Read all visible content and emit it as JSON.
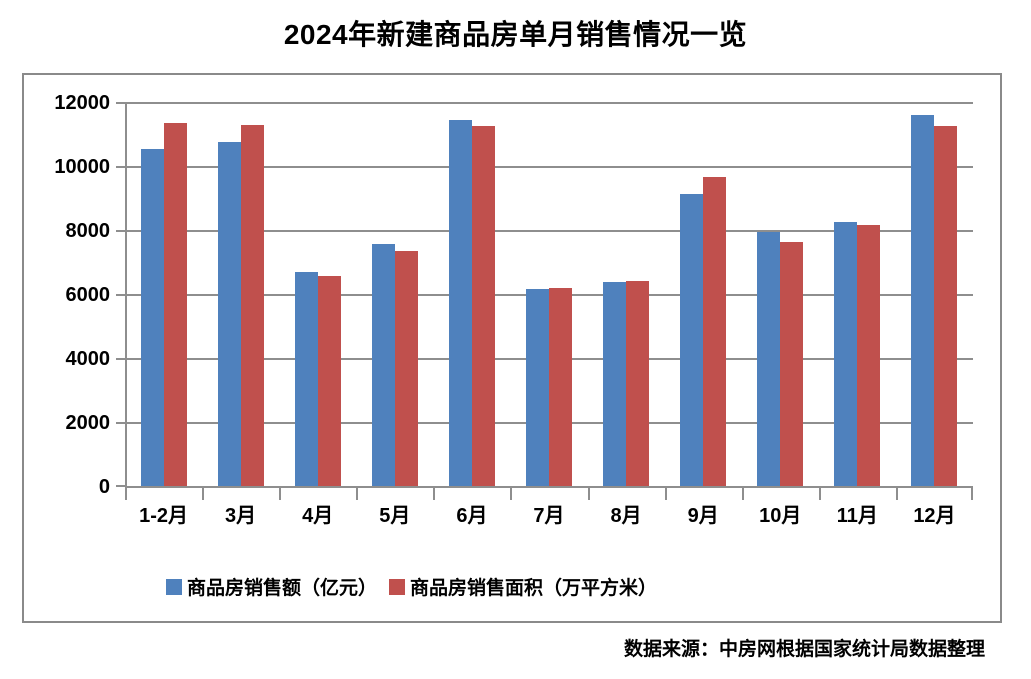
{
  "page": {
    "source_note": "数据来源：中房网根据国家统计局数据整理"
  },
  "colors": {
    "series1": "#4F81BD",
    "series2": "#C0504D",
    "gridline": "#8E8E8E",
    "axis": "#8E8E8E",
    "frame_border": "#8A8A8A",
    "text": "#000000",
    "background": "#FFFFFF"
  },
  "chart_data": {
    "type": "bar",
    "title": "2024年新建商品房单月销售情况一览",
    "categories": [
      "1-2月",
      "3月",
      "4月",
      "5月",
      "6月",
      "7月",
      "8月",
      "9月",
      "10月",
      "11月",
      "12月"
    ],
    "series": [
      {
        "name": "商品房销售额（亿元）",
        "color": "#4F81BD",
        "values": [
          10566,
          10789,
          6712,
          7598,
          11468,
          6197,
          6393,
          9157,
          7975,
          8270,
          11625
        ]
      },
      {
        "name": "商品房销售面积（万平方米）",
        "color": "#C0504D",
        "values": [
          11369,
          11299,
          6584,
          7390,
          11274,
          6233,
          6453,
          9682,
          7646,
          8188,
          11267
        ]
      }
    ],
    "xlabel": "",
    "ylabel": "",
    "ylim": [
      0,
      12000
    ],
    "yticks": [
      0,
      2000,
      4000,
      6000,
      8000,
      10000,
      12000
    ],
    "grid": true,
    "legend_position": "bottom"
  }
}
